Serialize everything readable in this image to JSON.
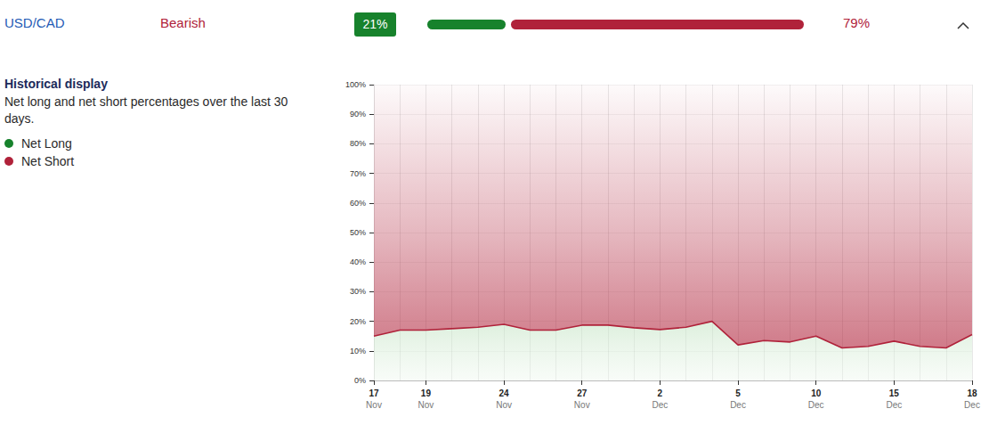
{
  "header": {
    "pair": "USD/CAD",
    "sentiment": "Bearish",
    "long": {
      "value": 21,
      "label": "21%"
    },
    "short": {
      "value": 79,
      "label": "79%"
    }
  },
  "sidebar": {
    "title": "Historical display",
    "description": "Net long and net short percentages over the last 30 days."
  },
  "chart_data": {
    "type": "line",
    "stacked": true,
    "grid": true,
    "categories": [
      "17 Nov",
      null,
      "19 Nov",
      null,
      null,
      "24 Nov",
      null,
      null,
      "27 Nov",
      null,
      null,
      "2 Dec",
      null,
      null,
      "5 Dec",
      null,
      null,
      "10 Dec",
      null,
      null,
      "15 Dec",
      null,
      null,
      "18 Dec"
    ],
    "series": [
      {
        "name": "Net Long",
        "color": "#17822c",
        "values": [
          15,
          17,
          17,
          17.5,
          18,
          19,
          17,
          17,
          18.7,
          18.7,
          17.8,
          17.2,
          18,
          20,
          12,
          13.5,
          13,
          15,
          11,
          11.5,
          13.3,
          11.5,
          11,
          15.5
        ]
      },
      {
        "name": "Net Short",
        "color": "#b0223a",
        "values": [
          85,
          83,
          83,
          82.5,
          82,
          81,
          83,
          83,
          81.3,
          81.3,
          82.2,
          82.8,
          82,
          80,
          88,
          86.5,
          87,
          85,
          89,
          88.5,
          86.7,
          88.5,
          89,
          84.5
        ]
      }
    ],
    "ylim": [
      0,
      100
    ],
    "yticks": [
      {
        "value": 0,
        "label": "0%"
      },
      {
        "value": 10,
        "label": "10%"
      },
      {
        "value": 20,
        "label": "20%"
      },
      {
        "value": 30,
        "label": "30%"
      },
      {
        "value": 40,
        "label": "40%"
      },
      {
        "value": 50,
        "label": "50%"
      },
      {
        "value": 60,
        "label": "60%"
      },
      {
        "value": 70,
        "label": "70%"
      },
      {
        "value": 80,
        "label": "80%"
      },
      {
        "value": 90,
        "label": "90%"
      },
      {
        "value": 100,
        "label": "100%"
      }
    ]
  }
}
